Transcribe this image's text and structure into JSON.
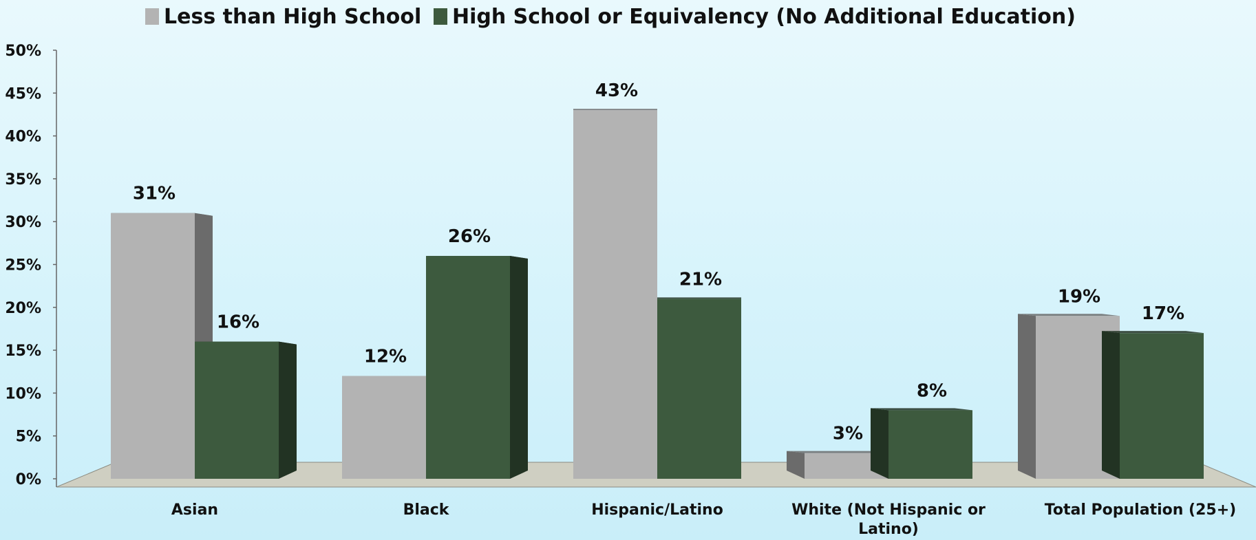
{
  "chart_data": {
    "type": "bar",
    "title": "",
    "xlabel": "",
    "ylabel": "",
    "categories": [
      [
        "Asian"
      ],
      [
        "Black"
      ],
      [
        "Hispanic/Latino"
      ],
      [
        "White (Not Hispanic or",
        "Latino)"
      ],
      [
        "Total Population (25+)"
      ]
    ],
    "series": [
      {
        "name": "Less than High School",
        "values": [
          31,
          12,
          43,
          3,
          19
        ],
        "labels": [
          "31%",
          "12%",
          "43%",
          "3%",
          "19%"
        ],
        "color": "#b3b3b3",
        "side_color": "#6b6b6b"
      },
      {
        "name": "High School or Equivalency (No Additional Education)",
        "values": [
          16,
          26,
          21,
          8,
          17
        ],
        "labels": [
          "16%",
          "26%",
          "21%",
          "8%",
          "17%"
        ],
        "color": "#3d5a3e",
        "side_color": "#223323"
      }
    ],
    "ylim": [
      0,
      50
    ],
    "yticks": [
      "0%",
      "5%",
      "10%",
      "15%",
      "20%",
      "25%",
      "30%",
      "35%",
      "40%",
      "45%",
      "50%"
    ],
    "legend_position": "top",
    "grid": false,
    "floor_color": "#cfcfc2"
  }
}
